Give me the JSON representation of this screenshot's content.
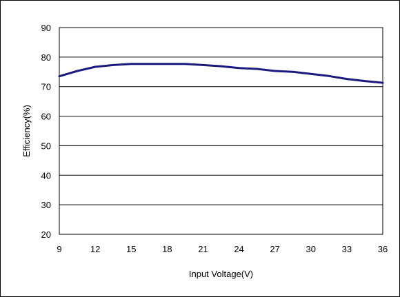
{
  "chart_data": {
    "type": "line",
    "title": "",
    "xlabel": "Input Voltage(V)",
    "ylabel": "Efficiency(%)",
    "xlim": [
      9,
      36
    ],
    "ylim": [
      20,
      90
    ],
    "xticks": [
      9,
      12,
      15,
      18,
      21,
      24,
      27,
      30,
      33,
      36
    ],
    "yticks": [
      20,
      30,
      40,
      50,
      60,
      70,
      80,
      90
    ],
    "grid": "horizontal",
    "legend": "none",
    "series": [
      {
        "color": "#1a1a80",
        "x": [
          9,
          10.5,
          12,
          13.5,
          15,
          16.5,
          18,
          19.5,
          21,
          22.5,
          24,
          25.5,
          27,
          28.5,
          30,
          31.5,
          33,
          34.5,
          36
        ],
        "y": [
          73.5,
          75.3,
          76.7,
          77.3,
          77.7,
          77.7,
          77.7,
          77.7,
          77.3,
          76.9,
          76.3,
          76.0,
          75.3,
          75.0,
          74.3,
          73.6,
          72.6,
          71.9,
          71.3
        ]
      }
    ]
  }
}
